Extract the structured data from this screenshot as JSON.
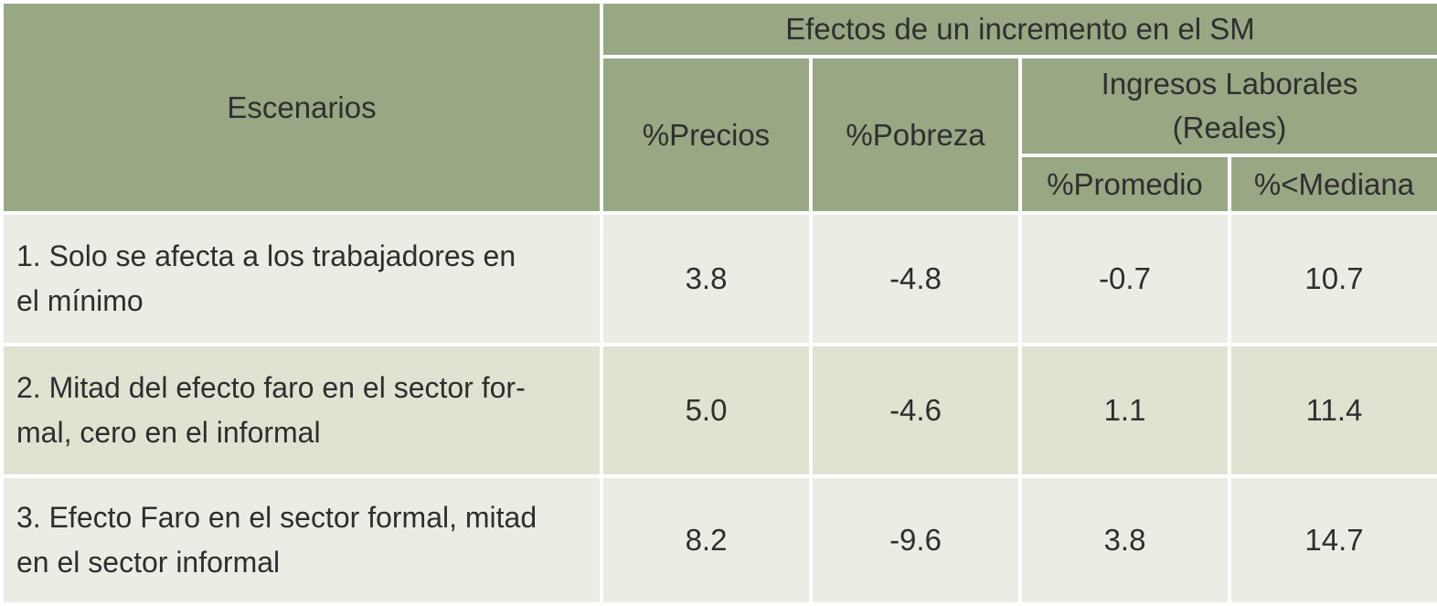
{
  "table": {
    "header": {
      "scenarios": "Escenarios",
      "effects_group": "Efectos de un incremento en el SM",
      "prices": "%Precios",
      "poverty": "%Pobreza",
      "income_group_line1": "Ingresos Laborales",
      "income_group_line2": "(Reales)",
      "mean": "%Promedio",
      "below_median": "%<Mediana"
    },
    "rows": [
      {
        "scenario_line1": "1. Solo se afecta a los trabajadores en",
        "scenario_line2": "el mínimo",
        "prices": "3.8",
        "poverty": "-4.8",
        "mean": "-0.7",
        "below_median": "10.7"
      },
      {
        "scenario_line1": "2. Mitad del efecto faro en el sector for-",
        "scenario_line2": "mal, cero en el informal",
        "prices": "5.0",
        "poverty": "-4.6",
        "mean": "1.1",
        "below_median": "11.4"
      },
      {
        "scenario_line1": "3. Efecto Faro en el sector formal, mitad",
        "scenario_line2": "en el sector informal",
        "prices": "8.2",
        "poverty": "-9.6",
        "mean": "3.8",
        "below_median": "14.7"
      }
    ]
  }
}
